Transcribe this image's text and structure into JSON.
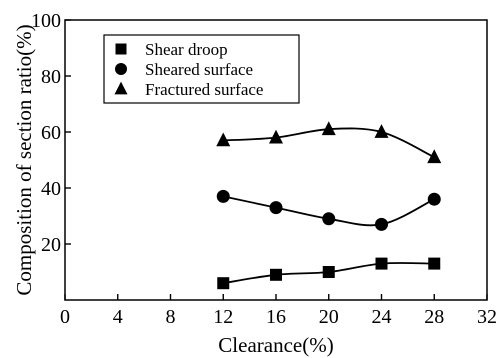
{
  "chart_data": {
    "type": "scatter",
    "title": "",
    "xlabel": "Clearance(%)",
    "ylabel": "Composition of section ratio(%)",
    "xlim": [
      0,
      32
    ],
    "ylim": [
      0,
      100
    ],
    "xticks": [
      0,
      4,
      8,
      12,
      16,
      20,
      24,
      28,
      32
    ],
    "yticks": [
      20,
      40,
      60,
      80,
      100
    ],
    "grid": false,
    "legend_position": "top-left",
    "series": [
      {
        "name": "Shear droop",
        "marker": "square",
        "color": "#000000",
        "x": [
          12,
          16,
          20,
          24,
          28
        ],
        "y": [
          6,
          9,
          10,
          13,
          13
        ]
      },
      {
        "name": "Sheared surface",
        "marker": "circle",
        "color": "#000000",
        "x": [
          12,
          16,
          20,
          24,
          28
        ],
        "y": [
          37,
          33,
          29,
          27,
          36
        ]
      },
      {
        "name": "Fractured surface",
        "marker": "triangle",
        "color": "#000000",
        "x": [
          12,
          16,
          20,
          24,
          28
        ],
        "y": [
          57,
          58,
          61,
          60,
          51
        ]
      }
    ]
  }
}
